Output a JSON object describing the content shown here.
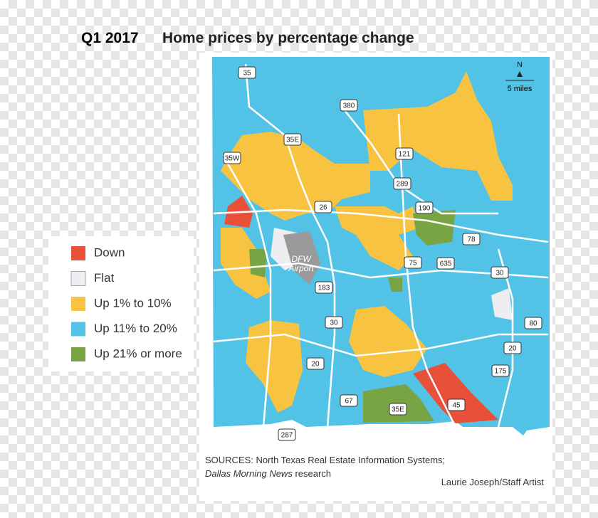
{
  "title": {
    "period": "Q1 2017",
    "text": "Home prices by percentage change"
  },
  "legend": [
    {
      "label": "Down",
      "color": "#e8503a"
    },
    {
      "label": "Flat",
      "color": "#eeeef2"
    },
    {
      "label": "Up 1% to 10%",
      "color": "#f7c340"
    },
    {
      "label": "Up 11% to 20%",
      "color": "#52c3e6"
    },
    {
      "label": "Up 21% or more",
      "color": "#79a444"
    }
  ],
  "highways": [
    "35",
    "380",
    "35E",
    "35W",
    "121",
    "289",
    "26",
    "190",
    "78",
    "635",
    "75",
    "30",
    "183",
    "30",
    "80",
    "20",
    "20",
    "175",
    "67",
    "35E",
    "45",
    "287"
  ],
  "airport_label": [
    "DFW",
    "Airport"
  ],
  "compass": "N",
  "scale": "5 miles",
  "sources": {
    "line1": "SOURCES: North Texas Real Estate Information Systems;",
    "line2_italic": "Dallas Morning News",
    "line2_rest": "research"
  },
  "credit": "Laurie Joseph/Staff Artist"
}
